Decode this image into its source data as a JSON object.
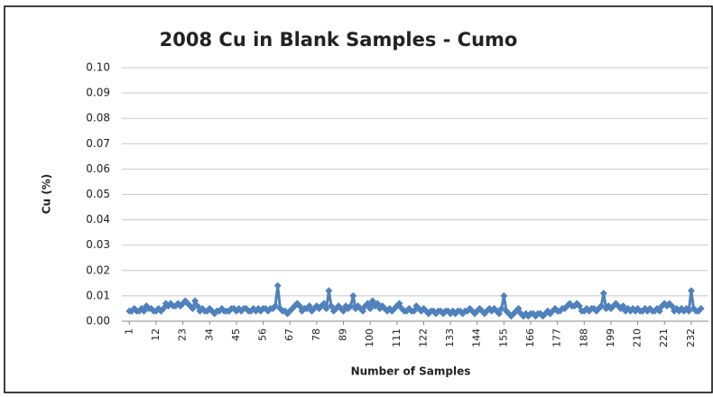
{
  "chart_data": {
    "type": "line",
    "title": "2008 Cu in Blank Samples - Cumo",
    "x_label": "Number of Samples",
    "y_label": "Cu (%)",
    "categories": [
      "1",
      null,
      null,
      null,
      null,
      null,
      null,
      null,
      null,
      null,
      null,
      "12",
      null,
      null,
      null,
      null,
      null,
      null,
      null,
      null,
      null,
      null,
      "23",
      null,
      null,
      null,
      null,
      null,
      null,
      null,
      null,
      null,
      null,
      "34",
      null,
      null,
      null,
      null,
      null,
      null,
      null,
      null,
      null,
      null,
      "45",
      null,
      null,
      null,
      null,
      null,
      null,
      null,
      null,
      null,
      null,
      "56",
      null,
      null,
      null,
      null,
      null,
      null,
      null,
      null,
      null,
      null,
      "67",
      null,
      null,
      null,
      null,
      null,
      null,
      null,
      null,
      null,
      null,
      "78",
      null,
      null,
      null,
      null,
      null,
      null,
      null,
      null,
      null,
      null,
      "89",
      null,
      null,
      null,
      null,
      null,
      null,
      null,
      null,
      null,
      null,
      "100",
      null,
      null,
      null,
      null,
      null,
      null,
      null,
      null,
      null,
      null,
      "111",
      null,
      null,
      null,
      null,
      null,
      null,
      null,
      null,
      null,
      null,
      "122",
      null,
      null,
      null,
      null,
      null,
      null,
      null,
      null,
      null,
      null,
      "133",
      null,
      null,
      null,
      null,
      null,
      null,
      null,
      null,
      null,
      null,
      "144",
      null,
      null,
      null,
      null,
      null,
      null,
      null,
      null,
      null,
      null,
      "155",
      null,
      null,
      null,
      null,
      null,
      null,
      null,
      null,
      null,
      null,
      "166",
      null,
      null,
      null,
      null,
      null,
      null,
      null,
      null,
      null,
      null,
      "177",
      null,
      null,
      null,
      null,
      null,
      null,
      null,
      null,
      null,
      null,
      "188",
      null,
      null,
      null,
      null,
      null,
      null,
      null,
      null,
      null,
      null,
      "199",
      null,
      null,
      null,
      null,
      null,
      null,
      null,
      null,
      null,
      null,
      "210",
      null,
      null,
      null,
      null,
      null,
      null,
      null,
      null,
      null,
      null,
      "221",
      null,
      null,
      null,
      null,
      null,
      null,
      null,
      null,
      null,
      null,
      "232",
      null,
      null,
      null,
      null
    ],
    "series": [
      {
        "name": "Cu",
        "color": "#4f81bd",
        "values": [
          0.004,
          0.004,
          0.005,
          0.004,
          0.004,
          0.005,
          0.004,
          0.006,
          0.005,
          0.005,
          0.004,
          0.004,
          0.005,
          0.004,
          0.005,
          0.007,
          0.006,
          0.007,
          0.006,
          0.006,
          0.007,
          0.006,
          0.007,
          0.008,
          0.007,
          0.006,
          0.005,
          0.008,
          0.006,
          0.004,
          0.005,
          0.004,
          0.004,
          0.005,
          0.004,
          0.003,
          0.004,
          0.004,
          0.005,
          0.004,
          0.004,
          0.004,
          0.005,
          0.005,
          0.004,
          0.005,
          0.004,
          0.005,
          0.005,
          0.004,
          0.004,
          0.005,
          0.004,
          0.005,
          0.004,
          0.005,
          0.005,
          0.004,
          0.005,
          0.005,
          0.006,
          0.014,
          0.005,
          0.004,
          0.004,
          0.003,
          0.004,
          0.005,
          0.006,
          0.007,
          0.006,
          0.004,
          0.005,
          0.005,
          0.006,
          0.004,
          0.005,
          0.006,
          0.005,
          0.006,
          0.007,
          0.005,
          0.012,
          0.006,
          0.004,
          0.005,
          0.006,
          0.005,
          0.004,
          0.006,
          0.005,
          0.006,
          0.01,
          0.005,
          0.006,
          0.005,
          0.004,
          0.006,
          0.007,
          0.005,
          0.008,
          0.006,
          0.007,
          0.005,
          0.006,
          0.005,
          0.004,
          0.005,
          0.004,
          0.005,
          0.006,
          0.007,
          0.005,
          0.004,
          0.004,
          0.005,
          0.004,
          0.004,
          0.006,
          0.005,
          0.004,
          0.005,
          0.004,
          0.003,
          0.004,
          0.004,
          0.003,
          0.004,
          0.004,
          0.003,
          0.004,
          0.004,
          0.003,
          0.004,
          0.003,
          0.004,
          0.004,
          0.003,
          0.004,
          0.004,
          0.005,
          0.004,
          0.003,
          0.004,
          0.005,
          0.004,
          0.003,
          0.004,
          0.005,
          0.004,
          0.005,
          0.004,
          0.003,
          0.005,
          0.01,
          0.004,
          0.003,
          0.002,
          0.003,
          0.004,
          0.005,
          0.003,
          0.002,
          0.003,
          0.002,
          0.003,
          0.003,
          0.002,
          0.003,
          0.003,
          0.002,
          0.003,
          0.004,
          0.003,
          0.004,
          0.005,
          0.004,
          0.004,
          0.005,
          0.005,
          0.006,
          0.007,
          0.006,
          0.006,
          0.007,
          0.006,
          0.004,
          0.004,
          0.005,
          0.004,
          0.005,
          0.005,
          0.004,
          0.005,
          0.006,
          0.011,
          0.005,
          0.006,
          0.005,
          0.006,
          0.007,
          0.006,
          0.005,
          0.006,
          0.004,
          0.005,
          0.004,
          0.005,
          0.004,
          0.005,
          0.004,
          0.004,
          0.005,
          0.004,
          0.005,
          0.004,
          0.004,
          0.005,
          0.004,
          0.006,
          0.007,
          0.006,
          0.007,
          0.006,
          0.004,
          0.005,
          0.004,
          0.005,
          0.004,
          0.005,
          0.004,
          0.012,
          0.005,
          0.004,
          0.004,
          0.005
        ]
      }
    ],
    "ylim": [
      0,
      0.1
    ],
    "yticks": [
      {
        "value": 0,
        "label": "0.00"
      },
      {
        "value": 0.01,
        "label": "0.01"
      },
      {
        "value": 0.02,
        "label": "0.02"
      },
      {
        "value": 0.03,
        "label": "0.03"
      },
      {
        "value": 0.04,
        "label": "0.04"
      },
      {
        "value": 0.05,
        "label": "0.05"
      },
      {
        "value": 0.06,
        "label": "0.06"
      },
      {
        "value": 0.07,
        "label": "0.07"
      },
      {
        "value": 0.08,
        "label": "0.08"
      },
      {
        "value": 0.09,
        "label": "0.09"
      },
      {
        "value": 0.1,
        "label": "0.10"
      }
    ],
    "grid": true
  }
}
